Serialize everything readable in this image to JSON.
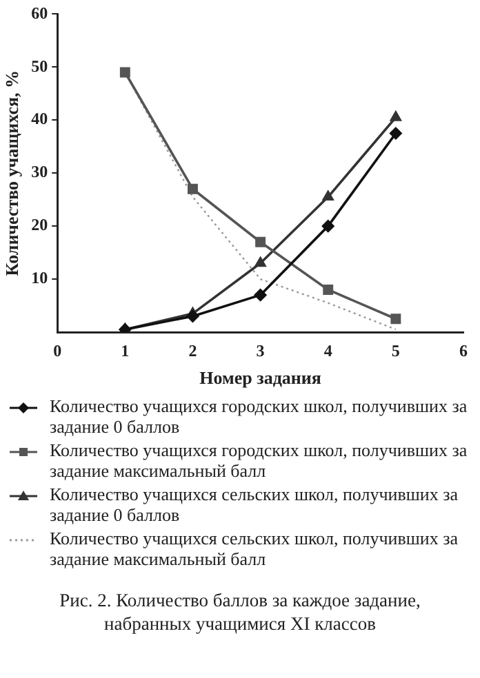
{
  "chart_data": {
    "type": "line",
    "xlabel": "Номер задания",
    "ylabel": "Количество учащихся, %",
    "x": [
      1,
      2,
      3,
      4,
      5
    ],
    "xlim": [
      0,
      6
    ],
    "xticks": [
      0,
      1,
      2,
      3,
      4,
      5,
      6
    ],
    "ylim": [
      0,
      60
    ],
    "yticks": [
      10,
      20,
      30,
      40,
      50,
      60
    ],
    "grid": false,
    "legend": "bottom",
    "series": [
      {
        "name": "Количество учащихся городских школ, получивших за задание 0 баллов",
        "color": "#111111",
        "marker": "diamond",
        "line_style": "solid",
        "values": [
          0.5,
          3,
          7,
          20,
          37.5
        ]
      },
      {
        "name": "Количество учащихся городских школ, получивших за задание максимальный балл",
        "color": "#555555",
        "marker": "square",
        "line_style": "solid",
        "values": [
          49,
          27,
          17,
          8,
          2.5
        ]
      },
      {
        "name": "Количество учащихся сельских школ, получивших за задание 0 баллов",
        "color": "#333333",
        "marker": "triangle",
        "line_style": "solid",
        "values": [
          0.5,
          3.5,
          13,
          25.5,
          40.5
        ]
      },
      {
        "name": "Количество учащихся сельских школ, получивших за задание максимальный балл",
        "color": "#999999",
        "marker": "none",
        "line_style": "dotted",
        "values": [
          49,
          25.5,
          10,
          5.5,
          0.5
        ]
      }
    ],
    "annotations": [
      "Рис. 2. Количество баллов за каждое задание, набранных учащимися XI классов"
    ]
  }
}
